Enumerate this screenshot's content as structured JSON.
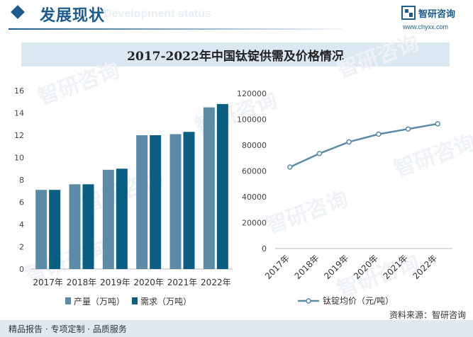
{
  "header": {
    "title": "发展现状",
    "watermark": "Development status",
    "brand": "智研咨询",
    "url": "www.chyxx.com"
  },
  "chart_title": "2017-2022年中国钛锭供需及价格情况",
  "chart_data": [
    {
      "type": "bar",
      "categories": [
        "2017年",
        "2018年",
        "2019年",
        "2020年",
        "2021年",
        "2022年"
      ],
      "series": [
        {
          "name": "产量（万吨）",
          "values": [
            7.1,
            7.6,
            8.9,
            12.0,
            12.1,
            14.5
          ]
        },
        {
          "name": "需求（万吨）",
          "values": [
            7.1,
            7.6,
            9.0,
            12.0,
            12.3,
            14.8
          ]
        }
      ],
      "ylim": [
        0,
        16
      ],
      "yticks": [
        0,
        2,
        4,
        6,
        8,
        10,
        12,
        14,
        16
      ],
      "colors": [
        "#5b8ba6",
        "#0b5e82"
      ],
      "legend_position": "bottom"
    },
    {
      "type": "line",
      "categories": [
        "2017年",
        "2018年",
        "2019年",
        "2020年",
        "2021年",
        "2022年"
      ],
      "series": [
        {
          "name": "钛锭均价（元/吨）",
          "values": [
            63000,
            73500,
            82500,
            88500,
            92500,
            96500
          ]
        }
      ],
      "ylim": [
        0,
        120000
      ],
      "yticks": [
        0,
        20000,
        40000,
        60000,
        80000,
        100000,
        120000
      ],
      "colors": [
        "#5b8ba6"
      ],
      "legend_position": "bottom"
    }
  ],
  "footer": {
    "left": "精品报告 · 专项定制 · 品质服务",
    "right": "资料来源：智研咨询"
  }
}
